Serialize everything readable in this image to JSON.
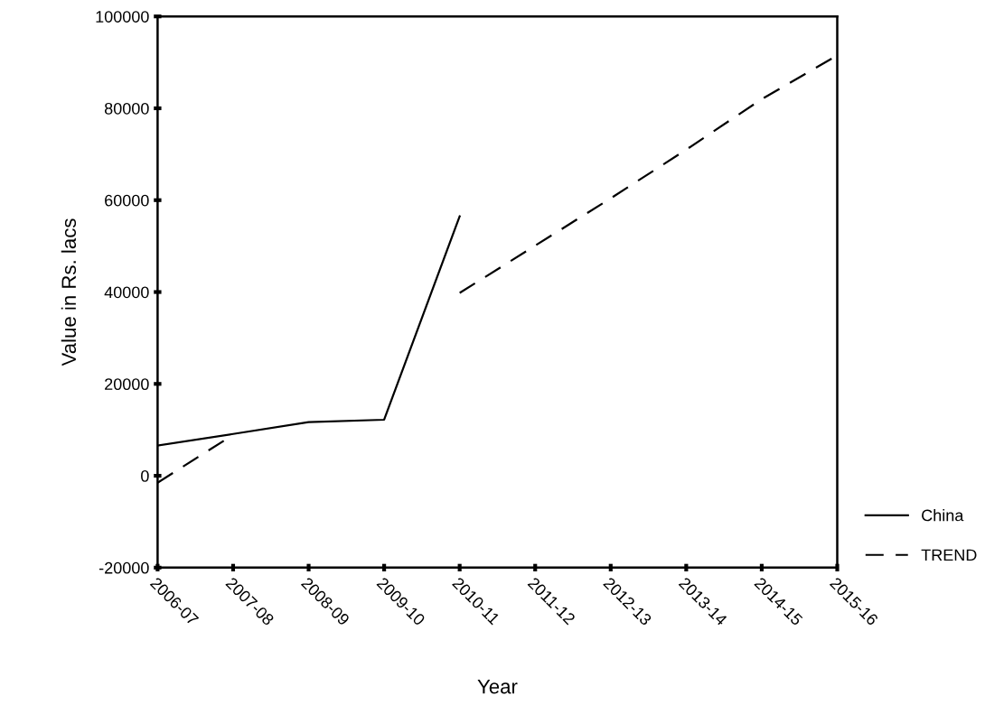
{
  "chart_data": {
    "type": "line",
    "xlabel": "Year",
    "ylabel": "Value in Rs. lacs",
    "categories": [
      "2006-07",
      "2007-08",
      "2008-09",
      "2009-10",
      "2010-11",
      "2011-12",
      "2012-13",
      "2013-14",
      "2014-15",
      "2015-16"
    ],
    "series": [
      {
        "name": "China",
        "color": "#000000",
        "line_style": "solid",
        "values": [
          6600,
          9100,
          11700,
          12200,
          56500,
          null,
          null,
          null,
          null,
          null
        ]
      },
      {
        "name": "TREND",
        "color": "#000000",
        "line_style": "dashed",
        "values": [
          -1500,
          8900,
          null,
          null,
          39800,
          50100,
          60400,
          71000,
          82000,
          91500
        ]
      }
    ],
    "ylim": [
      -20000,
      100000
    ],
    "yticks": [
      -20000,
      0,
      20000,
      40000,
      60000,
      80000,
      100000
    ],
    "grid": false,
    "legend": "bottom right",
    "marker": "none"
  }
}
